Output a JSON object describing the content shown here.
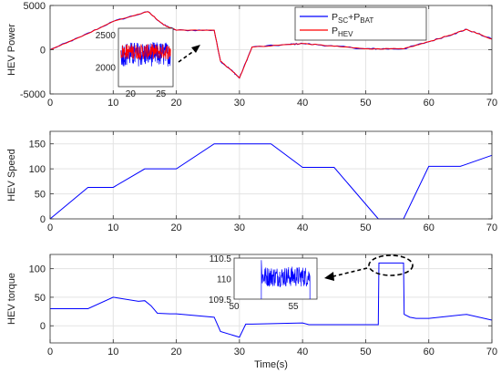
{
  "chart_data": [
    {
      "type": "line",
      "ylabel": "HEV Power",
      "xlim": [
        0,
        70
      ],
      "ylim": [
        -5000,
        5000
      ],
      "xticks": [
        0,
        10,
        20,
        30,
        40,
        50,
        60,
        70
      ],
      "yticks": [
        -5000,
        0,
        5000
      ],
      "grid": true,
      "legend_placement": "top-right",
      "legend": [
        {
          "label_main": "P",
          "sub1": "SC",
          "mid": "+P",
          "sub2": "BAT"
        },
        {
          "label_main": "P",
          "sub1": "HEV",
          "mid": "",
          "sub2": ""
        }
      ],
      "series": [
        {
          "color": "#0000ff",
          "x": [
            0,
            5,
            10,
            15.5,
            18,
            20,
            26,
            27,
            29,
            30,
            32,
            38,
            40,
            45,
            50,
            52,
            56,
            60,
            64,
            66,
            70
          ],
          "y": [
            0,
            1500,
            3200,
            4300,
            2800,
            2200,
            2200,
            -1300,
            -2500,
            -3200,
            300,
            600,
            700,
            400,
            100,
            100,
            100,
            900,
            1800,
            2300,
            1200
          ]
        },
        {
          "color": "#ff0000",
          "x": [
            0,
            5,
            10,
            15.5,
            18,
            20,
            26,
            27,
            29,
            30,
            32,
            38,
            40,
            45,
            50,
            52,
            56,
            60,
            64,
            66,
            70
          ],
          "y": [
            0,
            1500,
            3200,
            4300,
            2800,
            2200,
            2200,
            -1300,
            -2500,
            -3200,
            300,
            600,
            700,
            400,
            100,
            100,
            100,
            900,
            1800,
            2300,
            1200
          ]
        }
      ],
      "inset": {
        "xlim": [
          18,
          27
        ],
        "ylim": [
          1700,
          2600
        ],
        "xticks": [
          20,
          25
        ],
        "yticks": [
          2000,
          2500
        ],
        "center": 2200,
        "red_amplitude": 120,
        "blue_amplitude": 190
      }
    },
    {
      "type": "line",
      "ylabel": "HEV Speed",
      "xlim": [
        0,
        70
      ],
      "ylim": [
        0,
        175
      ],
      "xticks": [
        0,
        10,
        20,
        30,
        40,
        50,
        60,
        70
      ],
      "yticks": [
        0,
        50,
        100,
        150
      ],
      "grid": true,
      "series": [
        {
          "color": "#0000ff",
          "x": [
            0,
            6,
            10,
            15,
            20,
            26,
            35,
            40,
            45,
            52,
            56,
            60,
            65,
            70
          ],
          "y": [
            0,
            63,
            63,
            100,
            100,
            150,
            150,
            103,
            103,
            0,
            0,
            105,
            105,
            127
          ]
        }
      ]
    },
    {
      "type": "line",
      "ylabel": "HEV torque",
      "xlabel": "Time(s)",
      "xlim": [
        0,
        70
      ],
      "ylim": [
        -30,
        125
      ],
      "xticks": [
        0,
        10,
        20,
        30,
        40,
        50,
        60,
        70
      ],
      "yticks": [
        0,
        50,
        100
      ],
      "grid": true,
      "series": [
        {
          "color": "#0000ff",
          "x": [
            0,
            6,
            10,
            14,
            15,
            16,
            17,
            19,
            20,
            26,
            27,
            30,
            31,
            32,
            36,
            40,
            41,
            52,
            52.1,
            56,
            56.1,
            57,
            58,
            60,
            66,
            70
          ],
          "y": [
            30,
            30,
            50,
            43,
            44,
            35,
            22,
            21,
            21,
            15,
            -10,
            -20,
            3,
            3,
            4,
            5,
            2,
            2,
            110,
            110,
            20,
            15,
            13,
            13,
            20,
            10
          ]
        }
      ],
      "inset": {
        "xlim": [
          50,
          57
        ],
        "ylim": [
          109.5,
          110.5
        ],
        "xticks": [
          50,
          55
        ],
        "yticks": [
          109.5,
          110,
          110.5
        ],
        "data_start": 52.3,
        "data_end": 56.4,
        "center": 110.05,
        "amplitude": 0.25
      }
    }
  ]
}
